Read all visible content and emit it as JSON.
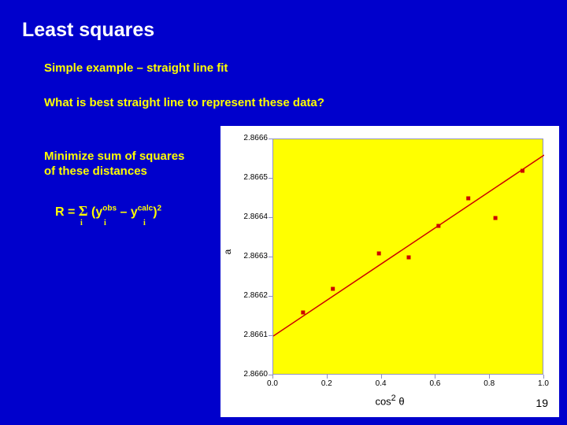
{
  "title": "Least squares",
  "subtitle": "Simple example – straight line fit",
  "question": "What is best straight line to represent these data?",
  "minimize_line1": "Minimize sum of squares",
  "minimize_line2": "of these distances",
  "formula": {
    "R": "R",
    "eq": " = ",
    "sigma": "Σ",
    "open": " (y",
    "obs": "obs",
    "minus": " –  y",
    "calc": "calc",
    "close": ")",
    "sq": "2",
    "i": "i"
  },
  "chart": {
    "type": "scatter-with-line",
    "background_color": "#ffffff",
    "plot_background": "#ffff00",
    "grid_color": "#9090c0",
    "xlim": [
      0.0,
      1.0
    ],
    "ylim": [
      2.866,
      2.8666
    ],
    "xticks": [
      0.0,
      0.2,
      0.4,
      0.6,
      0.8,
      1.0
    ],
    "yticks": [
      2.866,
      2.8661,
      2.8662,
      2.8663,
      2.8664,
      2.8665,
      2.8666
    ],
    "ytick_labels": [
      "2.8660",
      "2.8661",
      "2.8662",
      "2.8663",
      "2.8664",
      "2.8665",
      "2.8666"
    ],
    "xtick_labels": [
      "0.0",
      "0.2",
      "0.4",
      "0.6",
      "0.8",
      "1.0"
    ],
    "xlabel_html": "cos<sup>2</sup> θ",
    "ylabel": "a",
    "points": [
      {
        "x": 0.11,
        "y": 2.86616
      },
      {
        "x": 0.22,
        "y": 2.86622
      },
      {
        "x": 0.39,
        "y": 2.86631
      },
      {
        "x": 0.5,
        "y": 2.8663
      },
      {
        "x": 0.61,
        "y": 2.86638
      },
      {
        "x": 0.72,
        "y": 2.86645
      },
      {
        "x": 0.82,
        "y": 2.8664
      },
      {
        "x": 0.92,
        "y": 2.86652
      }
    ],
    "point_color": "#cc0000",
    "point_size": 5,
    "line": {
      "x1": 0.0,
      "y1": 2.8661,
      "x2": 1.0,
      "y2": 2.86656
    },
    "line_color": "#cc0000",
    "line_width": 1.5,
    "tick_fontsize": 10,
    "label_fontsize": 13
  },
  "pagenum": "19"
}
